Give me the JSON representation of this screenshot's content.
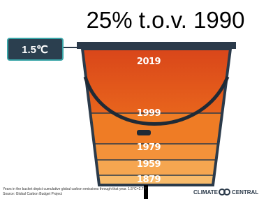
{
  "title": "25% t.o.v. 1990",
  "threshold_label": "1.5℃",
  "years": [
    "2019",
    "1999",
    "1979",
    "1959",
    "1879"
  ],
  "footnote": "Years in the bucket depict cumulative global carbon emissions through that year. 1.5°C=2.7°F",
  "source": "Source: Global Carbon Budget Project",
  "logo": {
    "left": "CLIMATE",
    "right": "CENTRAL"
  }
}
